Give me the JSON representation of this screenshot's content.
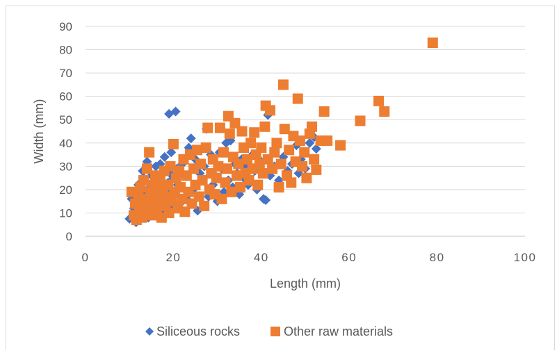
{
  "colors": {
    "siliceous": "#4472c4",
    "other": "#ed7d31",
    "grid": "#d9d9d9",
    "text": "#595959"
  },
  "chart_data": {
    "type": "scatter",
    "title": "",
    "xlabel": "Length (mm)",
    "ylabel": "Width (mm)",
    "xlim": [
      0,
      100
    ],
    "ylim": [
      0,
      90
    ],
    "x_ticks": [
      "0",
      "20",
      "40",
      "60",
      "80",
      "100"
    ],
    "y_ticks": [
      "0",
      "10",
      "20",
      "30",
      "40",
      "50",
      "60",
      "70",
      "80",
      "90"
    ],
    "grid": "horizontal",
    "legend_position": "bottom",
    "series": [
      {
        "name": "Siliceous rocks",
        "marker": "diamond",
        "color": "#4472c4",
        "points": [
          [
            10,
            7.5
          ],
          [
            10.5,
            16
          ],
          [
            11,
            12
          ],
          [
            11.5,
            6
          ],
          [
            11.8,
            20
          ],
          [
            12,
            22
          ],
          [
            12.3,
            9
          ],
          [
            12.7,
            14
          ],
          [
            13,
            28
          ],
          [
            13.2,
            25
          ],
          [
            13.5,
            18
          ],
          [
            13.8,
            11
          ],
          [
            14,
            32
          ],
          [
            14.3,
            8
          ],
          [
            14.7,
            21
          ],
          [
            15,
            26
          ],
          [
            15.4,
            13
          ],
          [
            15.8,
            17
          ],
          [
            16,
            30
          ],
          [
            16.5,
            22
          ],
          [
            16.8,
            24
          ],
          [
            17,
            31
          ],
          [
            17.2,
            15
          ],
          [
            17.5,
            10
          ],
          [
            17.8,
            28
          ],
          [
            18,
            34
          ],
          [
            18.3,
            19
          ],
          [
            18.8,
            23
          ],
          [
            19,
            52.5
          ],
          [
            19.2,
            27
          ],
          [
            19.5,
            36
          ],
          [
            19.8,
            12
          ],
          [
            20,
            25
          ],
          [
            20.3,
            18
          ],
          [
            20.5,
            53.5
          ],
          [
            20.8,
            29
          ],
          [
            21,
            22
          ],
          [
            21.5,
            14
          ],
          [
            22,
            31
          ],
          [
            22.5,
            26
          ],
          [
            23,
            16
          ],
          [
            23.5,
            38
          ],
          [
            24,
            42
          ],
          [
            24.5,
            20
          ],
          [
            25,
            33
          ],
          [
            25.5,
            11
          ],
          [
            26,
            27
          ],
          [
            26.5,
            24
          ],
          [
            27,
            30
          ],
          [
            27.5,
            46
          ],
          [
            28,
            17
          ],
          [
            28.5,
            35
          ],
          [
            29,
            22
          ],
          [
            29.5,
            26
          ],
          [
            30,
            15
          ],
          [
            30.5,
            36
          ],
          [
            31,
            29
          ],
          [
            31.5,
            19
          ],
          [
            32,
            40
          ],
          [
            32.5,
            24
          ],
          [
            33,
            41
          ],
          [
            33.5,
            21
          ],
          [
            34,
            31
          ],
          [
            34.5,
            27
          ],
          [
            35,
            18
          ],
          [
            35.5,
            33
          ],
          [
            36,
            25
          ],
          [
            36.5,
            30
          ],
          [
            37,
            22
          ],
          [
            38,
            35
          ],
          [
            38.5,
            28
          ],
          [
            39,
            20
          ],
          [
            40,
            32
          ],
          [
            40.5,
            16
          ],
          [
            41,
            15.5
          ],
          [
            41.5,
            52
          ],
          [
            42,
            26
          ],
          [
            43,
            30
          ],
          [
            44,
            24
          ],
          [
            45,
            34
          ],
          [
            46,
            28
          ],
          [
            47,
            31
          ],
          [
            48,
            39
          ],
          [
            48.5,
            27
          ],
          [
            49,
            33
          ],
          [
            50,
            29
          ],
          [
            51,
            40
          ],
          [
            52,
            42.5
          ],
          [
            52.5,
            37.5
          ]
        ]
      },
      {
        "name": "Other raw materials",
        "marker": "square",
        "color": "#ed7d31",
        "points": [
          [
            10.5,
            19
          ],
          [
            11,
            9
          ],
          [
            11.3,
            14
          ],
          [
            11.6,
            7
          ],
          [
            12,
            17
          ],
          [
            12.2,
            11
          ],
          [
            12.5,
            21
          ],
          [
            12.8,
            8
          ],
          [
            13,
            13
          ],
          [
            13.2,
            24
          ],
          [
            13.5,
            10
          ],
          [
            13.7,
            16
          ],
          [
            14,
            29
          ],
          [
            14.2,
            12
          ],
          [
            14.5,
            36
          ],
          [
            14.8,
            19
          ],
          [
            15,
            9
          ],
          [
            15.3,
            22
          ],
          [
            15.6,
            15
          ],
          [
            15.9,
            26
          ],
          [
            16.2,
            11
          ],
          [
            16.5,
            18
          ],
          [
            16.8,
            14
          ],
          [
            17,
            24
          ],
          [
            17.3,
            8
          ],
          [
            17.6,
            20
          ],
          [
            17.9,
            28
          ],
          [
            18.2,
            13
          ],
          [
            18.5,
            17
          ],
          [
            18.8,
            22
          ],
          [
            19,
            10
          ],
          [
            19.3,
            30
          ],
          [
            19.6,
            15
          ],
          [
            20,
            39.5
          ],
          [
            20.3,
            19
          ],
          [
            20.6,
            25
          ],
          [
            21,
            12
          ],
          [
            21.3,
            28
          ],
          [
            21.6,
            21
          ],
          [
            22,
            16
          ],
          [
            22.3,
            33
          ],
          [
            22.6,
            10.5
          ],
          [
            23,
            26
          ],
          [
            23.4,
            19
          ],
          [
            23.8,
            35
          ],
          [
            24.2,
            14
          ],
          [
            24.6,
            29
          ],
          [
            25,
            22
          ],
          [
            25.4,
            37
          ],
          [
            25.8,
            17
          ],
          [
            26.2,
            31
          ],
          [
            26.6,
            24
          ],
          [
            27,
            13
          ],
          [
            27.4,
            38
          ],
          [
            27.8,
            46.5
          ],
          [
            28.2,
            20
          ],
          [
            28.6,
            27
          ],
          [
            29,
            33
          ],
          [
            29.4,
            18
          ],
          [
            29.8,
            25
          ],
          [
            30.2,
            30
          ],
          [
            30.6,
            46.5
          ],
          [
            31,
            16
          ],
          [
            31.4,
            36
          ],
          [
            31.8,
            23
          ],
          [
            32.2,
            29
          ],
          [
            32.5,
            51.5
          ],
          [
            32.8,
            44
          ],
          [
            33.2,
            19
          ],
          [
            33.6,
            34
          ],
          [
            34,
            48.5
          ],
          [
            34.4,
            26
          ],
          [
            34.8,
            31
          ],
          [
            35.2,
            21
          ],
          [
            35.6,
            45
          ],
          [
            36,
            38
          ],
          [
            36.4,
            27
          ],
          [
            36.8,
            33
          ],
          [
            37.2,
            24
          ],
          [
            37.6,
            40
          ],
          [
            38,
            29
          ],
          [
            38.4,
            44.5
          ],
          [
            38.8,
            35
          ],
          [
            39.2,
            22
          ],
          [
            39.6,
            31
          ],
          [
            40,
            38
          ],
          [
            40.4,
            27
          ],
          [
            40.8,
            47
          ],
          [
            41,
            56
          ],
          [
            41.5,
            33
          ],
          [
            42,
            54
          ],
          [
            42.5,
            29
          ],
          [
            43,
            36
          ],
          [
            43.5,
            40
          ],
          [
            44,
            21
          ],
          [
            44.5,
            31
          ],
          [
            45,
            65
          ],
          [
            45.3,
            46
          ],
          [
            45.8,
            26
          ],
          [
            46.3,
            37
          ],
          [
            46.8,
            23
          ],
          [
            47.3,
            43
          ],
          [
            47.8,
            32
          ],
          [
            48.3,
            59
          ],
          [
            48.8,
            41
          ],
          [
            49.3,
            30
          ],
          [
            49.8,
            36
          ],
          [
            50.3,
            25
          ],
          [
            51,
            44
          ],
          [
            51.5,
            47
          ],
          [
            52,
            33
          ],
          [
            52.5,
            28.5
          ],
          [
            53.5,
            41
          ],
          [
            54.3,
            53.5
          ],
          [
            55,
            41
          ],
          [
            58,
            39
          ],
          [
            62.5,
            49.5
          ],
          [
            66.7,
            58
          ],
          [
            68,
            53.5
          ],
          [
            79,
            83
          ]
        ]
      }
    ]
  }
}
